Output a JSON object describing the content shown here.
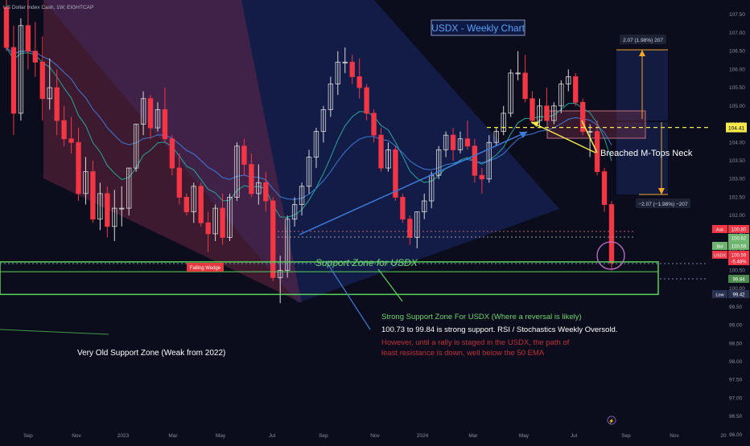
{
  "header": {
    "symbol_line": "US Dollar Index Cash, 1W, EIGHTCAP"
  },
  "colors": {
    "background": "#0b0d1c",
    "bull": "#d9d9d9",
    "bear": "#f23645",
    "support": "#5ad45a",
    "accent_blue": "#3d7bd9",
    "ema_teal": "#26a69a",
    "warning_red": "#c0303a",
    "orange": "#f5a623"
  },
  "chart_data": {
    "type": "candlestick",
    "title": "USDX - Weekly Chart",
    "timeframe": "1W",
    "ylim": [
      95.8,
      107.9
    ],
    "price_ticks": [
      "107.50",
      "107.00",
      "106.50",
      "106.00",
      "105.50",
      "105.00",
      "104.50",
      "104.00",
      "103.50",
      "103.00",
      "102.50",
      "102.00",
      "101.50",
      "101.00",
      "100.50",
      "100.00",
      "99.50",
      "99.00",
      "98.50",
      "98.00",
      "97.50",
      "97.00",
      "96.50",
      "96.00"
    ],
    "time_labels": [
      "Sep",
      "Nov",
      "2023",
      "Mar",
      "May",
      "Jul",
      "Sep",
      "Nov",
      "2024",
      "Mar",
      "May",
      "Jul",
      "Sep",
      "Nov",
      "20"
    ],
    "candles": [
      [
        107.7,
        108.4,
        106.5,
        106.6
      ],
      [
        106.6,
        107.2,
        104.2,
        104.8
      ],
      [
        104.8,
        107.4,
        104.6,
        107.2
      ],
      [
        107.2,
        107.9,
        106.0,
        106.5
      ],
      [
        106.5,
        107.3,
        105.8,
        106.2
      ],
      [
        106.2,
        106.9,
        104.6,
        105.2
      ],
      [
        105.2,
        106.3,
        104.9,
        105.5
      ],
      [
        105.5,
        106.0,
        104.2,
        104.6
      ],
      [
        104.6,
        105.0,
        103.9,
        104.1
      ],
      [
        104.1,
        104.7,
        103.7,
        104.0
      ],
      [
        104.0,
        104.4,
        102.4,
        102.6
      ],
      [
        102.6,
        103.6,
        102.3,
        103.2
      ],
      [
        103.2,
        103.5,
        101.8,
        101.9
      ],
      [
        101.9,
        102.9,
        101.6,
        102.6
      ],
      [
        102.6,
        102.8,
        101.4,
        101.7
      ],
      [
        101.7,
        102.7,
        101.3,
        102.2
      ],
      [
        102.2,
        102.8,
        101.7,
        102.2
      ],
      [
        102.2,
        103.3,
        102.0,
        103.3
      ],
      [
        103.3,
        104.5,
        103.2,
        104.5
      ],
      [
        104.5,
        105.4,
        104.2,
        105.2
      ],
      [
        105.2,
        105.3,
        104.1,
        104.4
      ],
      [
        104.4,
        105.1,
        104.3,
        104.9
      ],
      [
        104.9,
        105.5,
        104.0,
        104.1
      ],
      [
        104.1,
        104.2,
        103.1,
        103.3
      ],
      [
        103.3,
        103.7,
        102.3,
        102.5
      ],
      [
        102.5,
        102.6,
        102.0,
        102.1
      ],
      [
        102.1,
        102.9,
        101.8,
        102.8
      ],
      [
        102.8,
        102.9,
        101.7,
        101.8
      ],
      [
        101.8,
        102.1,
        101.0,
        101.5
      ],
      [
        101.5,
        102.3,
        101.3,
        102.2
      ],
      [
        102.2,
        102.6,
        101.2,
        101.4
      ],
      [
        101.4,
        102.6,
        101.3,
        102.5
      ],
      [
        102.5,
        104.0,
        102.4,
        103.9
      ],
      [
        103.9,
        104.1,
        103.1,
        103.4
      ],
      [
        103.4,
        103.7,
        102.5,
        102.6
      ],
      [
        102.6,
        103.4,
        102.3,
        102.9
      ],
      [
        102.9,
        103.2,
        102.1,
        102.4
      ],
      [
        102.4,
        102.5,
        100.2,
        100.3
      ],
      [
        100.3,
        100.9,
        99.6,
        100.5
      ],
      [
        100.5,
        102.0,
        100.3,
        101.9
      ],
      [
        101.9,
        102.5,
        101.7,
        102.3
      ],
      [
        102.3,
        102.9,
        102.0,
        102.8
      ],
      [
        102.8,
        103.8,
        102.6,
        103.6
      ],
      [
        103.6,
        104.4,
        103.3,
        104.3
      ],
      [
        104.3,
        105.0,
        104.0,
        104.9
      ],
      [
        104.9,
        105.8,
        104.7,
        105.6
      ],
      [
        105.6,
        106.5,
        105.3,
        106.2
      ],
      [
        106.2,
        106.6,
        105.9,
        106.2
      ],
      [
        106.2,
        106.4,
        105.6,
        105.8
      ],
      [
        105.8,
        106.3,
        105.2,
        105.5
      ],
      [
        105.5,
        105.6,
        104.6,
        104.8
      ],
      [
        104.8,
        104.9,
        104.0,
        104.2
      ],
      [
        104.2,
        104.4,
        103.2,
        103.3
      ],
      [
        103.3,
        104.0,
        103.2,
        103.8
      ],
      [
        103.8,
        103.9,
        102.4,
        102.5
      ],
      [
        102.5,
        102.6,
        101.8,
        101.9
      ],
      [
        101.9,
        102.0,
        101.2,
        101.4
      ],
      [
        101.4,
        102.1,
        101.1,
        102.1
      ],
      [
        102.1,
        102.6,
        101.9,
        102.4
      ],
      [
        102.4,
        103.2,
        102.2,
        103.1
      ],
      [
        103.1,
        103.9,
        103.0,
        103.8
      ],
      [
        103.8,
        104.3,
        103.6,
        104.2
      ],
      [
        104.2,
        104.4,
        103.5,
        103.8
      ],
      [
        103.8,
        104.3,
        103.7,
        104.1
      ],
      [
        104.1,
        104.6,
        103.8,
        103.9
      ],
      [
        103.9,
        104.1,
        102.9,
        103.1
      ],
      [
        103.1,
        103.3,
        102.6,
        103.0
      ],
      [
        103.0,
        104.2,
        102.9,
        104.0
      ],
      [
        104.0,
        104.4,
        103.9,
        104.3
      ],
      [
        104.3,
        105.0,
        104.2,
        104.8
      ],
      [
        104.8,
        106.0,
        104.7,
        105.9
      ],
      [
        105.9,
        106.5,
        105.7,
        105.9
      ],
      [
        105.9,
        106.4,
        105.1,
        105.2
      ],
      [
        105.2,
        105.4,
        104.5,
        104.6
      ],
      [
        104.6,
        105.2,
        104.4,
        105.0
      ],
      [
        105.0,
        105.5,
        104.6,
        104.6
      ],
      [
        104.6,
        105.1,
        104.5,
        105.0
      ],
      [
        105.0,
        105.7,
        104.8,
        105.6
      ],
      [
        105.6,
        106.0,
        105.4,
        105.8
      ],
      [
        105.8,
        105.9,
        105.0,
        105.1
      ],
      [
        105.1,
        105.2,
        104.2,
        104.3
      ],
      [
        104.3,
        104.5,
        103.6,
        104.3
      ],
      [
        104.3,
        104.6,
        103.1,
        103.2
      ],
      [
        103.2,
        103.3,
        102.1,
        102.3
      ],
      [
        102.3,
        102.4,
        100.5,
        100.7
      ]
    ],
    "support_zone": {
      "high": 100.73,
      "low": 99.84,
      "label": "Support Zone for USDX"
    },
    "neckline": 104.41,
    "levels": [
      {
        "label": "Ask",
        "value": "100.80"
      },
      {
        "label": "",
        "value": "100.62"
      },
      {
        "label": "Bid",
        "value": "100.59"
      },
      {
        "label": "USDX",
        "value": "100.59",
        "change": "-5.48%"
      },
      {
        "label": "",
        "value": "99.84"
      },
      {
        "label": "Low",
        "value": "99.42"
      }
    ],
    "annotations": {
      "top_measure": "2.07 (1.98%) 207",
      "bottom_measure": "−2.07 (−1.98%) −207",
      "breached_neck": "Breached M-Tops Neck",
      "falling_wedge": "Falling Wedge",
      "strong_support_title": "Strong Support Zone For USDX (Where a reversal is likely)",
      "strong_support_body": "100.73 to 99.84 is strong support. RSI / Stochastics Weekly Oversold.",
      "warning_line1": "However, until a rally is staged in the USDX, the path of",
      "warning_line2": "least resistance is down, well below the 50 EMA",
      "old_support": "Very Old Support Zone (Weak from 2022)"
    }
  }
}
